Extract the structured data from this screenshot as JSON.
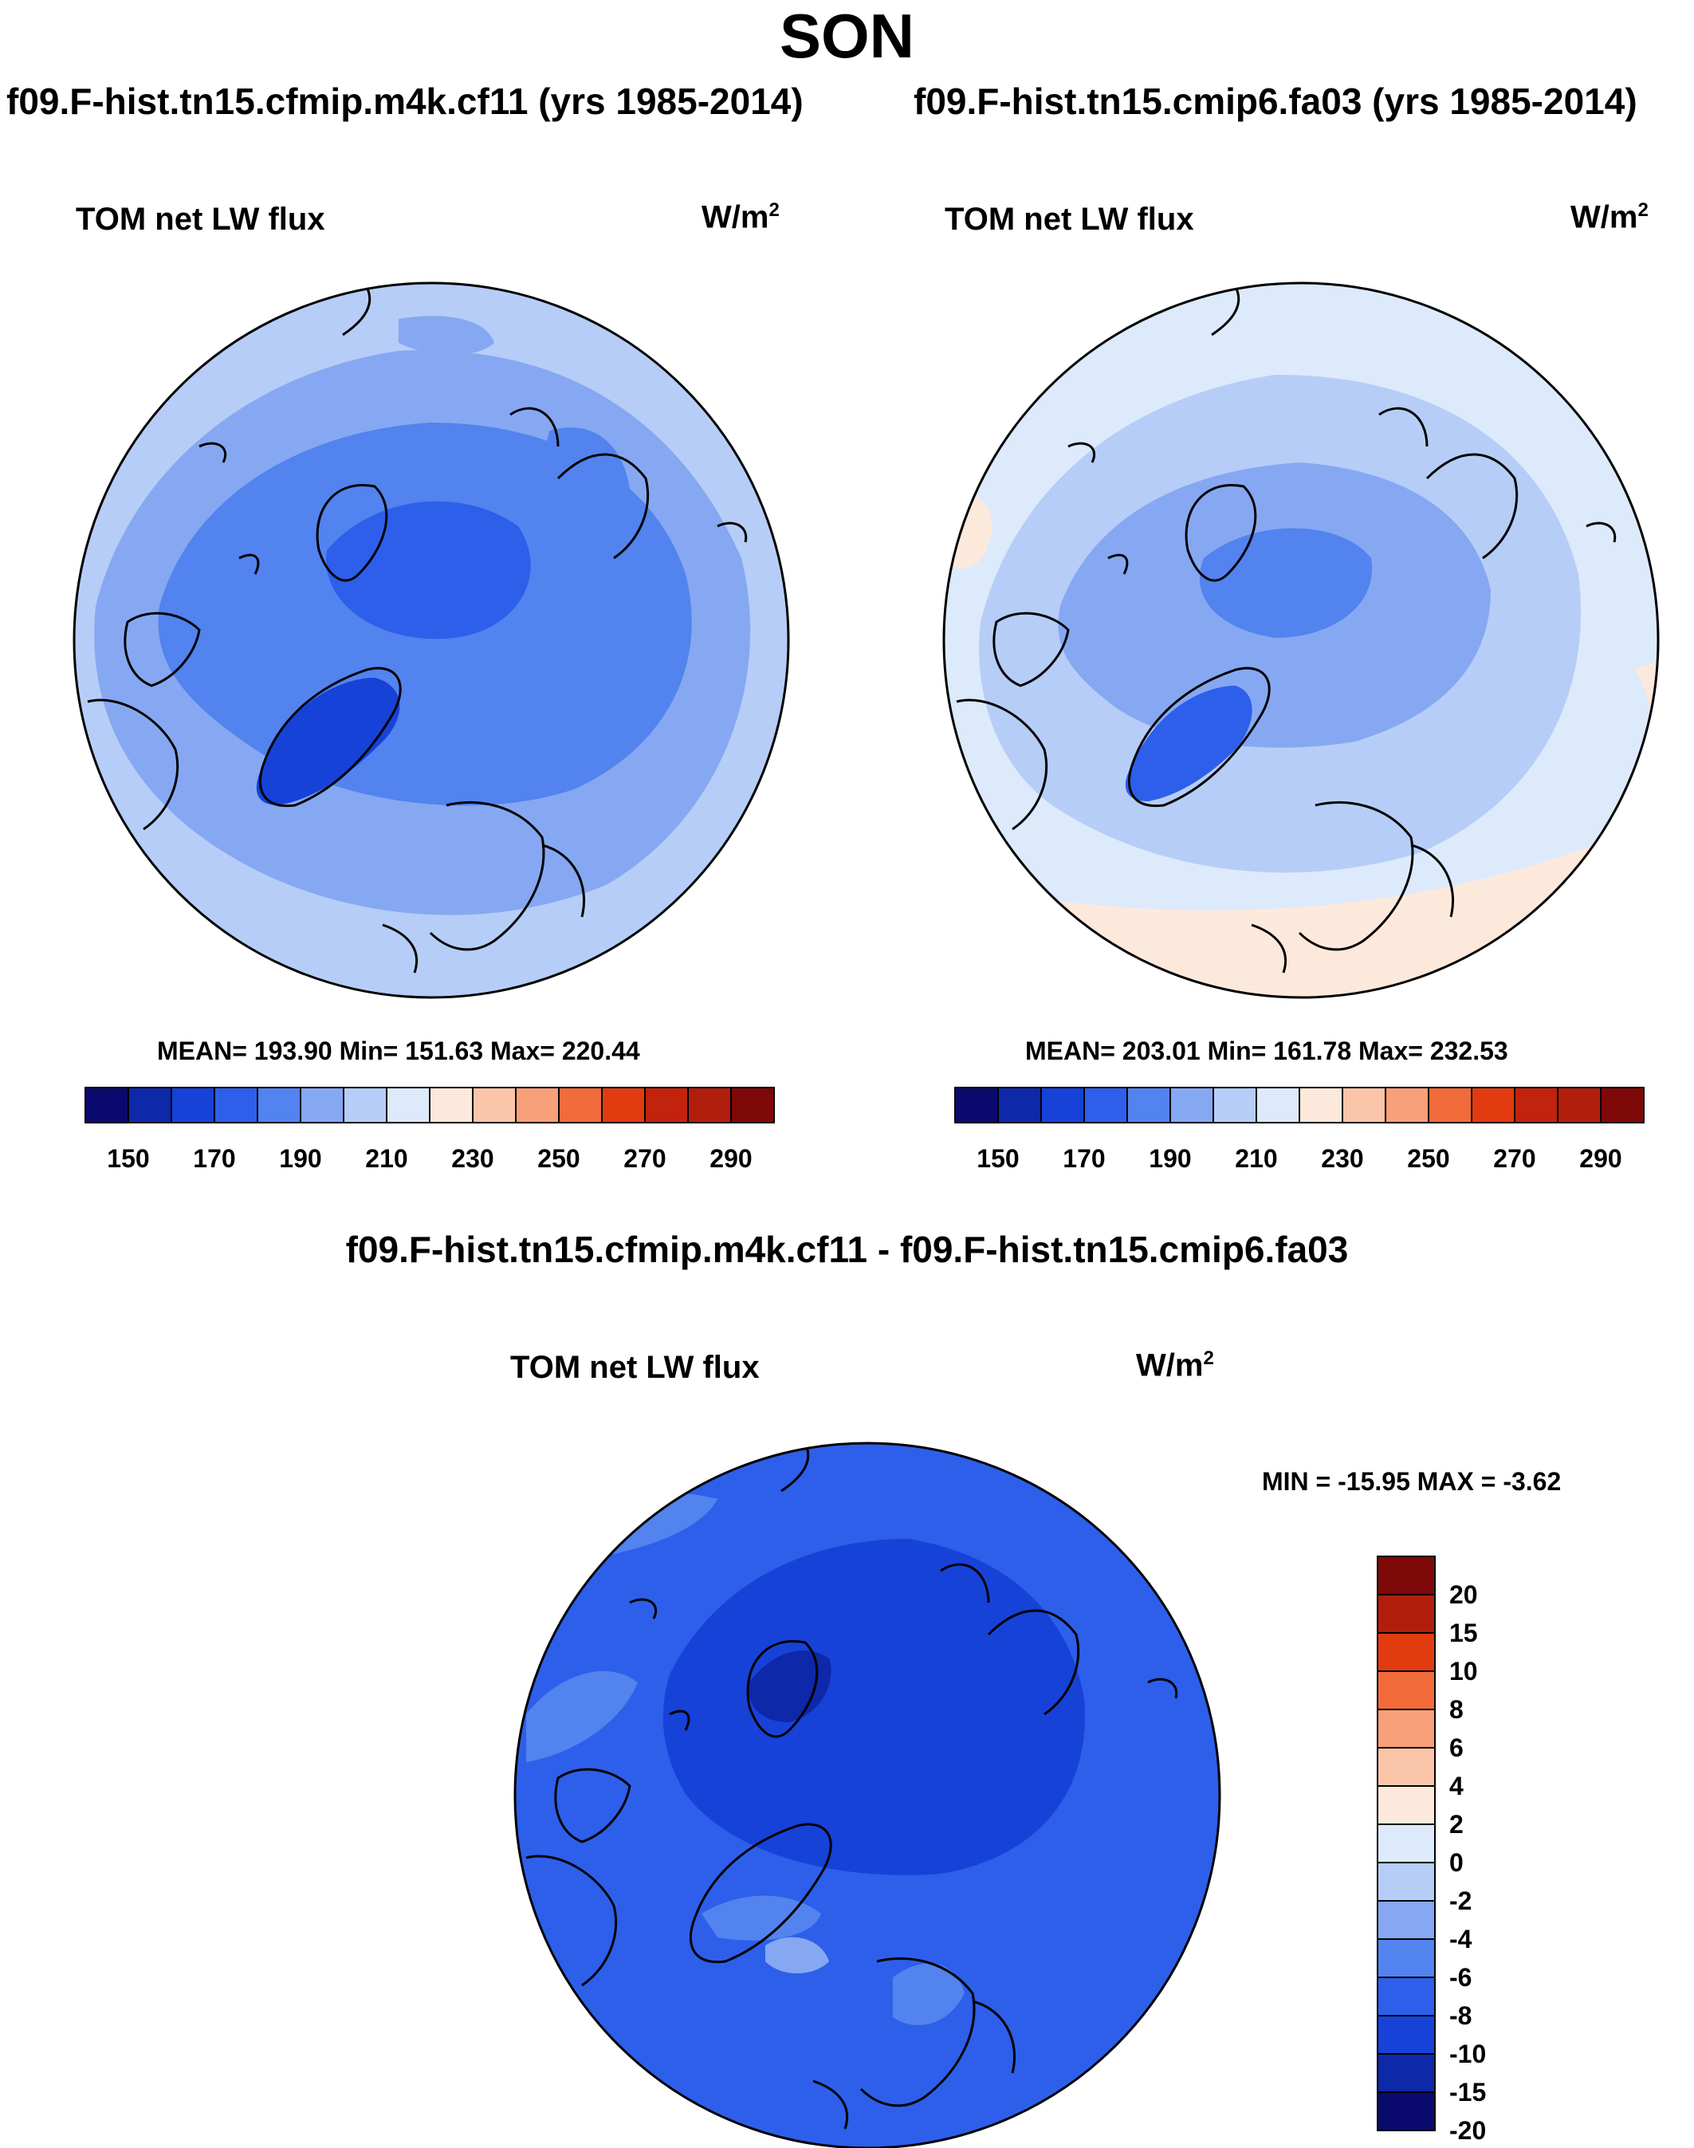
{
  "title": "SON",
  "panels": [
    {
      "case": "f09.F-hist.tn15.cfmip.m4k.cf11 (yrs 1985-2014)",
      "variable": "TOM net LW flux",
      "units": "W/m",
      "units_exp": "2",
      "stats": "MEAN= 193.90  Min= 151.63  Max= 220.44"
    },
    {
      "case": "f09.F-hist.tn15.cmip6.fa03 (yrs 1985-2014)",
      "variable": "TOM net LW flux",
      "units": "W/m",
      "units_exp": "2",
      "stats": "MEAN= 203.01  Min= 161.78  Max= 232.53"
    }
  ],
  "abs_colorbar": {
    "colors": [
      "#0a0a6e",
      "#0d28a8",
      "#1642d8",
      "#2d5fea",
      "#5283ee",
      "#86a8f2",
      "#b6cdf7",
      "#ddeafb",
      "#fde9dc",
      "#fbc5a9",
      "#f8a07a",
      "#f26b3a",
      "#e23b10",
      "#c1230c",
      "#b21e0c",
      "#7f0808"
    ],
    "labels": [
      "150",
      "170",
      "190",
      "210",
      "230",
      "250",
      "270",
      "290"
    ]
  },
  "diff": {
    "title": "f09.F-hist.tn15.cfmip.m4k.cf11 - f09.F-hist.tn15.cmip6.fa03",
    "variable": "TOM net LW flux",
    "units": "W/m",
    "units_exp": "2",
    "stats": "MIN = -15.95 MAX =  -3.62"
  },
  "diff_colorbar": {
    "colors": [
      "#7f0808",
      "#b21e0c",
      "#e23b10",
      "#f26b3a",
      "#f8a07a",
      "#fbc5a9",
      "#fde9dc",
      "#ddeafb",
      "#b6cdf7",
      "#86a8f2",
      "#5283ee",
      "#2d5fea",
      "#1642d8",
      "#0d28a8",
      "#0a0a6e"
    ],
    "labels": [
      "20",
      "15",
      "10",
      "8",
      "6",
      "4",
      "2",
      "0",
      "-2",
      "-4",
      "-6",
      "-8",
      "-10",
      "-15",
      "-20"
    ]
  },
  "colors": {
    "land_outline": "#000000",
    "field_dark": "#1642d8",
    "field_mid": "#5283ee",
    "field_light": "#b6cdf7"
  }
}
